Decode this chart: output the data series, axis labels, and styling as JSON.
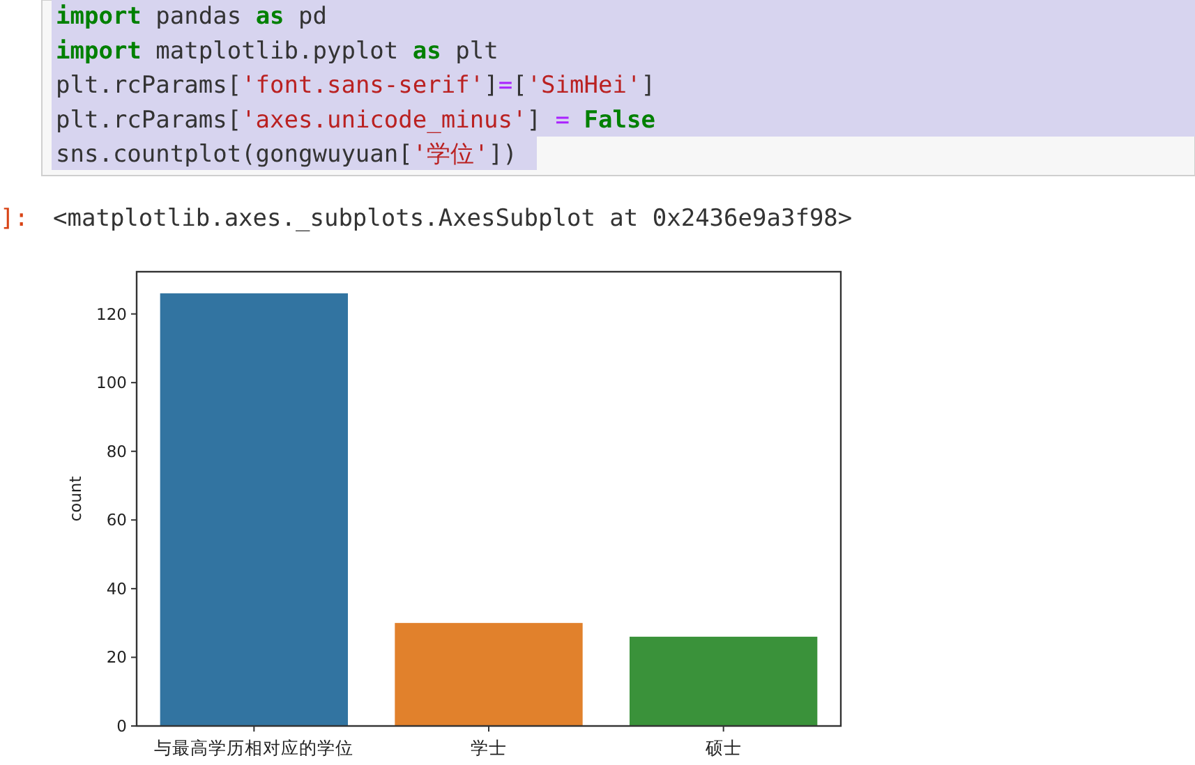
{
  "chart_data": {
    "type": "bar",
    "categories": [
      "与最高学历相对应的学位",
      "学士",
      "硕士"
    ],
    "values": [
      126,
      30,
      26
    ],
    "colors": [
      "#3274a1",
      "#e1812c",
      "#3a923a"
    ],
    "ylabel": "count",
    "ylim": [
      0,
      132.3
    ],
    "yticks": [
      0,
      20,
      40,
      60,
      80,
      100,
      120
    ],
    "annotations": [
      "import pandas as pd",
      "import matplotlib.pyplot as plt",
      "plt.rcParams['font.sans-serif']=['SimHei']",
      "plt.rcParams['axes.unicode_minus'] = False",
      "sns.countplot(gongwuyuan['学位'])",
      "]:",
      "<matplotlib.axes._subplots.AxesSubplot at 0x2436e9a3f98>"
    ]
  }
}
